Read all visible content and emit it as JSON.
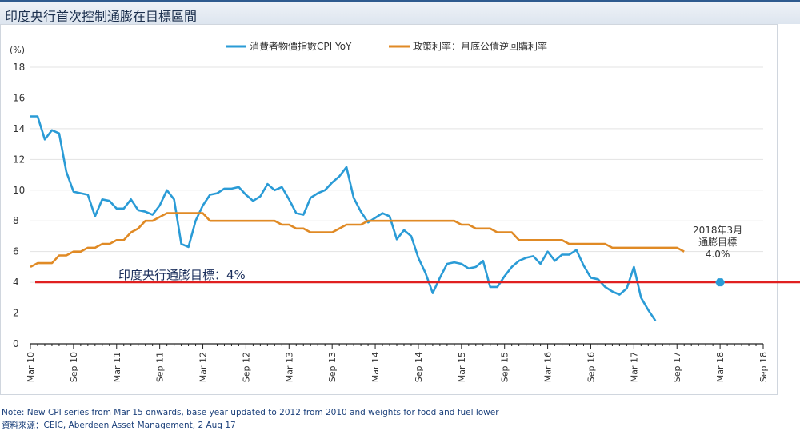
{
  "title": "印度央行首次控制通膨在目標區間",
  "chart_data": {
    "type": "line",
    "yunit": "(%)",
    "ylim": [
      0,
      18
    ],
    "yticks": [
      0,
      2,
      4,
      6,
      8,
      10,
      12,
      14,
      16,
      18
    ],
    "grid": "horizontal",
    "legend_position": "top-center",
    "xticks": [
      "Mar 10",
      "Sep 10",
      "Mar 11",
      "Sep 11",
      "Mar 12",
      "Sep 12",
      "Mar 13",
      "Sep 13",
      "Mar 14",
      "Sep 14",
      "Mar 15",
      "Sep 15",
      "Mar 16",
      "Sep 16",
      "Mar 17",
      "Sep 17",
      "Mar 18",
      "Sep 18"
    ],
    "series": [
      {
        "name": "消費者物價指數CPI YoY",
        "color": "#2a9bd6",
        "values": [
          14.8,
          14.8,
          13.3,
          13.9,
          13.7,
          11.2,
          9.9,
          9.8,
          9.7,
          8.3,
          9.4,
          9.3,
          8.8,
          8.8,
          9.4,
          8.7,
          8.6,
          8.4,
          9.0,
          10.0,
          9.4,
          6.5,
          6.3,
          8.0,
          9.0,
          9.7,
          9.8,
          10.1,
          10.1,
          10.2,
          9.7,
          9.3,
          9.6,
          10.4,
          10.0,
          10.2,
          9.4,
          8.5,
          8.4,
          9.5,
          9.8,
          10.0,
          10.5,
          10.9,
          11.5,
          9.5,
          8.6,
          7.9,
          8.2,
          8.5,
          8.3,
          6.8,
          7.4,
          7.0,
          5.6,
          4.6,
          3.3,
          4.3,
          5.2,
          5.3,
          5.2,
          4.9,
          5.0,
          5.4,
          3.7,
          3.7,
          4.4,
          5.0,
          5.4,
          5.6,
          5.7,
          5.2,
          6.0,
          5.4,
          5.8,
          5.8,
          6.1,
          5.1,
          4.3,
          4.2,
          3.7,
          3.4,
          3.2,
          3.6,
          5.0,
          3.0,
          2.2,
          1.5
        ]
      },
      {
        "name": "政策利率：月底公債逆回購利率",
        "color": "#e08a25",
        "values": [
          5.0,
          5.25,
          5.25,
          5.25,
          5.75,
          5.75,
          6.0,
          6.0,
          6.25,
          6.25,
          6.5,
          6.5,
          6.75,
          6.75,
          7.25,
          7.5,
          8.0,
          8.0,
          8.25,
          8.5,
          8.5,
          8.5,
          8.5,
          8.5,
          8.5,
          8.0,
          8.0,
          8.0,
          8.0,
          8.0,
          8.0,
          8.0,
          8.0,
          8.0,
          8.0,
          7.75,
          7.75,
          7.5,
          7.5,
          7.25,
          7.25,
          7.25,
          7.25,
          7.5,
          7.75,
          7.75,
          7.75,
          8.0,
          8.0,
          8.0,
          8.0,
          8.0,
          8.0,
          8.0,
          8.0,
          8.0,
          8.0,
          8.0,
          8.0,
          8.0,
          7.75,
          7.75,
          7.5,
          7.5,
          7.5,
          7.25,
          7.25,
          7.25,
          6.75,
          6.75,
          6.75,
          6.75,
          6.75,
          6.75,
          6.75,
          6.5,
          6.5,
          6.5,
          6.5,
          6.5,
          6.5,
          6.25,
          6.25,
          6.25,
          6.25,
          6.25,
          6.25,
          6.25,
          6.25,
          6.25,
          6.25,
          6.0
        ]
      }
    ],
    "target_line": {
      "value": 4,
      "label": "印度央行通膨目標：4%",
      "color": "#e02020"
    },
    "target_point": {
      "x": "Mar 18",
      "value": 4.0,
      "label_line1": "2018年3月",
      "label_line2": "通膨目標",
      "label_line3": "4.0%"
    }
  },
  "footer": {
    "note": "Note: New CPI series from Mar 15 onwards, base year updated to 2012 from 2010 and weights for food and fuel lower",
    "source": "資料來源：CEIC, Aberdeen Asset Management, 2 Aug 17"
  }
}
